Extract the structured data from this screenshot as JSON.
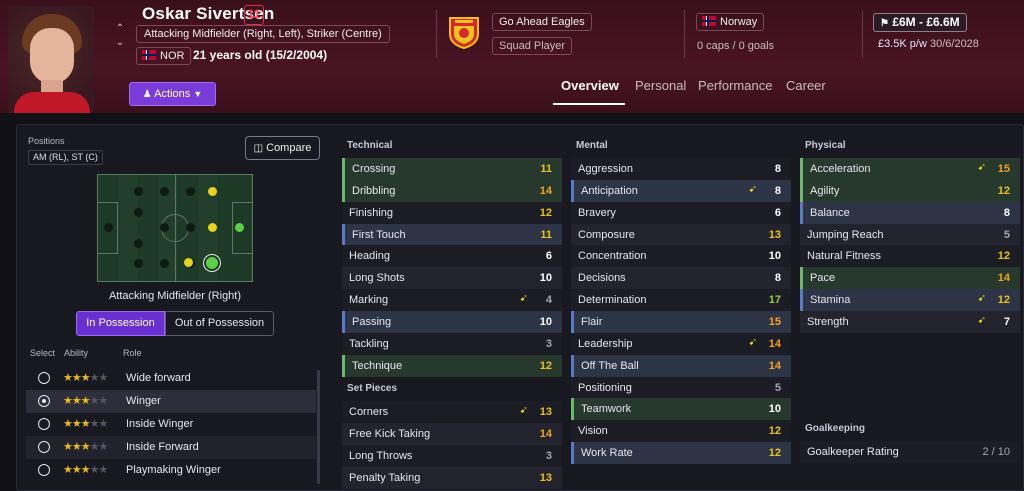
{
  "player": {
    "name": "Oskar Sivertsen",
    "shirt_number": "11",
    "positions_full": "Attacking Midfielder (Right, Left), Striker (Centre)",
    "nationality_code": "NOR",
    "age_text": "21 years old (15/2/2004)",
    "actions_label": "Actions",
    "actions_icon": "person-icon"
  },
  "club": {
    "name": "Go Ahead Eagles",
    "status": "Squad Player"
  },
  "nation": {
    "name": "Norway",
    "caps": "0 caps / 0 goals"
  },
  "contract": {
    "value": "£6M - £6.6M",
    "wage": "£3.5K p/w",
    "expiry": "30/6/2028"
  },
  "tabs": [
    "Overview",
    "Personal",
    "Performance",
    "Career"
  ],
  "active_tab": "Overview",
  "positions_panel": {
    "label": "Positions",
    "positions": "AM (RL), ST (C)",
    "compare_label": "Compare",
    "pitch_caption": "Attacking Midfielder (Right)",
    "in_possession": "In Possession",
    "out_possession": "Out of Possession",
    "headers": {
      "select": "Select",
      "ability": "Ability",
      "role": "Role"
    },
    "roles": [
      {
        "name": "Wide forward",
        "stars": 3,
        "selected": false
      },
      {
        "name": "Winger",
        "stars": 3,
        "selected": true
      },
      {
        "name": "Inside Winger",
        "stars": 3,
        "selected": false
      },
      {
        "name": "Inside Forward",
        "stars": 3,
        "selected": false
      },
      {
        "name": "Playmaking Winger",
        "stars": 3,
        "selected": false
      }
    ]
  },
  "sections": {
    "technical": "Technical",
    "set_pieces": "Set Pieces",
    "mental": "Mental",
    "physical": "Physical",
    "goalkeeping": "Goalkeeping"
  },
  "technical": [
    {
      "name": "Crossing",
      "value": "11",
      "tone": "yellow",
      "hl": "green",
      "arrow": false
    },
    {
      "name": "Dribbling",
      "value": "14",
      "tone": "orange",
      "hl": "green",
      "arrow": false
    },
    {
      "name": "Finishing",
      "value": "12",
      "tone": "yellow",
      "hl": "",
      "arrow": false
    },
    {
      "name": "First Touch",
      "value": "11",
      "tone": "yellow",
      "hl": "blue",
      "arrow": false
    },
    {
      "name": "Heading",
      "value": "6",
      "tone": "white",
      "hl": "",
      "arrow": false
    },
    {
      "name": "Long Shots",
      "value": "10",
      "tone": "white",
      "hl": "",
      "arrow": false
    },
    {
      "name": "Marking",
      "value": "4",
      "tone": "grey",
      "hl": "",
      "arrow": true
    },
    {
      "name": "Passing",
      "value": "10",
      "tone": "white",
      "hl": "blue",
      "arrow": false
    },
    {
      "name": "Tackling",
      "value": "3",
      "tone": "grey",
      "hl": "",
      "arrow": false
    },
    {
      "name": "Technique",
      "value": "12",
      "tone": "yellow",
      "hl": "green",
      "arrow": false
    }
  ],
  "set_pieces": [
    {
      "name": "Corners",
      "value": "13",
      "tone": "yellow",
      "hl": "",
      "arrow": true
    },
    {
      "name": "Free Kick Taking",
      "value": "14",
      "tone": "orange",
      "hl": "",
      "arrow": false
    },
    {
      "name": "Long Throws",
      "value": "3",
      "tone": "grey",
      "hl": "",
      "arrow": false
    },
    {
      "name": "Penalty Taking",
      "value": "13",
      "tone": "yellow",
      "hl": "",
      "arrow": false
    }
  ],
  "mental": [
    {
      "name": "Aggression",
      "value": "8",
      "tone": "white",
      "hl": "",
      "arrow": false
    },
    {
      "name": "Anticipation",
      "value": "8",
      "tone": "white",
      "hl": "blue",
      "arrow": true
    },
    {
      "name": "Bravery",
      "value": "6",
      "tone": "white",
      "hl": "",
      "arrow": false
    },
    {
      "name": "Composure",
      "value": "13",
      "tone": "yellow",
      "hl": "",
      "arrow": false
    },
    {
      "name": "Concentration",
      "value": "10",
      "tone": "white",
      "hl": "",
      "arrow": false
    },
    {
      "name": "Decisions",
      "value": "8",
      "tone": "white",
      "hl": "",
      "arrow": false
    },
    {
      "name": "Determination",
      "value": "17",
      "tone": "green",
      "hl": "",
      "arrow": false
    },
    {
      "name": "Flair",
      "value": "15",
      "tone": "orange",
      "hl": "blue",
      "arrow": false
    },
    {
      "name": "Leadership",
      "value": "14",
      "tone": "orange",
      "hl": "",
      "arrow": true
    },
    {
      "name": "Off The Ball",
      "value": "14",
      "tone": "orange",
      "hl": "blue",
      "arrow": false
    },
    {
      "name": "Positioning",
      "value": "5",
      "tone": "grey",
      "hl": "",
      "arrow": false
    },
    {
      "name": "Teamwork",
      "value": "10",
      "tone": "white",
      "hl": "green",
      "arrow": false
    },
    {
      "name": "Vision",
      "value": "12",
      "tone": "yellow",
      "hl": "",
      "arrow": false
    },
    {
      "name": "Work Rate",
      "value": "12",
      "tone": "yellow",
      "hl": "blue",
      "arrow": false
    }
  ],
  "physical": [
    {
      "name": "Acceleration",
      "value": "15",
      "tone": "orange",
      "hl": "green",
      "arrow": true
    },
    {
      "name": "Agility",
      "value": "12",
      "tone": "yellow",
      "hl": "green",
      "arrow": false
    },
    {
      "name": "Balance",
      "value": "8",
      "tone": "white",
      "hl": "blue",
      "arrow": false
    },
    {
      "name": "Jumping Reach",
      "value": "5",
      "tone": "grey",
      "hl": "",
      "arrow": false
    },
    {
      "name": "Natural Fitness",
      "value": "12",
      "tone": "yellow",
      "hl": "",
      "arrow": false
    },
    {
      "name": "Pace",
      "value": "14",
      "tone": "orange",
      "hl": "green",
      "arrow": false
    },
    {
      "name": "Stamina",
      "value": "12",
      "tone": "yellow",
      "hl": "blue",
      "arrow": true
    },
    {
      "name": "Strength",
      "value": "7",
      "tone": "white",
      "hl": "",
      "arrow": true
    }
  ],
  "goalkeeping": {
    "label": "Goalkeeper Rating",
    "value": "2 / 10"
  },
  "colors": {
    "accent_purple": "#7a3bd8",
    "header_maroon": "#4a1323",
    "attr_yellow": "#e8c21c",
    "attr_orange": "#f2a21c",
    "attr_green": "#8ad03a"
  }
}
